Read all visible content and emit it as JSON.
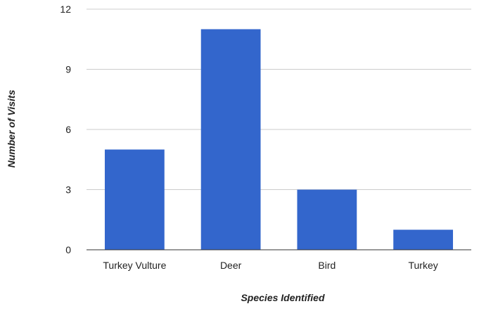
{
  "chart_data": {
    "type": "bar",
    "title": "",
    "xlabel": "Species Identified",
    "ylabel": "Number of Visits",
    "categories": [
      "Turkey Vulture",
      "Deer",
      "Bird",
      "Turkey"
    ],
    "series": [
      {
        "values": [
          5,
          11,
          3,
          1
        ]
      }
    ],
    "ylim": [
      0,
      12
    ],
    "yticks": [
      "0",
      "3",
      "6",
      "9",
      "12"
    ],
    "grid": true,
    "legend": "none",
    "colors": {
      "bar": "#3366cc",
      "grid": "#cccccc",
      "baseline": "#333333",
      "text": "#222222"
    }
  }
}
